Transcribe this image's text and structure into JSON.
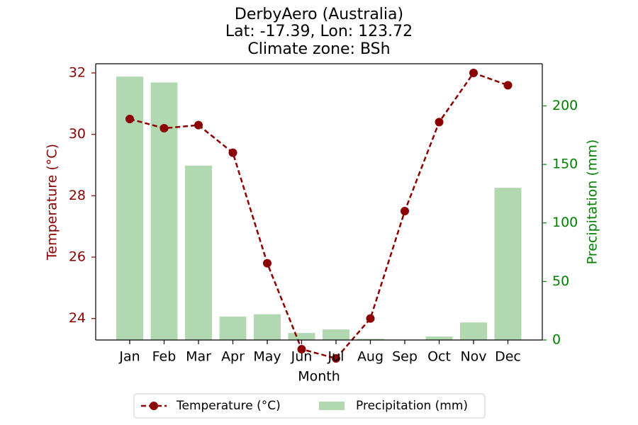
{
  "chart_data": {
    "type": "bar+line",
    "title": [
      "DerbyAero (Australia)",
      "Lat: -17.39, Lon: 123.72",
      "Climate zone: BSh"
    ],
    "categories": [
      "Jan",
      "Feb",
      "Mar",
      "Apr",
      "May",
      "Jun",
      "Jul",
      "Aug",
      "Sep",
      "Oct",
      "Nov",
      "Dec"
    ],
    "xlabel": "Month",
    "series": [
      {
        "name": "Temperature (°C)",
        "type": "line",
        "axis": "left",
        "values": [
          30.5,
          30.2,
          30.3,
          29.4,
          25.8,
          23.0,
          22.7,
          24.0,
          27.5,
          30.4,
          32.0,
          31.6
        ]
      },
      {
        "name": "Precipitation (mm)",
        "type": "bar",
        "axis": "right",
        "values": [
          225,
          220,
          149,
          20,
          22,
          6,
          9,
          1,
          0,
          3,
          15,
          130
        ]
      }
    ],
    "left_axis": {
      "label": "Temperature (°C)",
      "ylim": [
        23.3,
        32.3
      ],
      "ticks": [
        24,
        26,
        28,
        30,
        32
      ],
      "tick_labels": [
        "24",
        "26",
        "28",
        "30",
        "32"
      ]
    },
    "right_axis": {
      "label": "Precipitation (mm)",
      "ylim": [
        0,
        236
      ],
      "ticks": [
        0,
        50,
        100,
        150,
        200
      ],
      "tick_labels": [
        "0",
        "50",
        "100",
        "150",
        "200"
      ]
    },
    "legend": {
      "placement": "bottom-center",
      "entries": [
        "Temperature (°C)",
        "Precipitation (mm)"
      ]
    },
    "grid": false,
    "colors": {
      "temperature": "#8b0000",
      "precipitation": "#b2d8b2",
      "precip_axis": "#008000",
      "axis": "#000000"
    }
  }
}
